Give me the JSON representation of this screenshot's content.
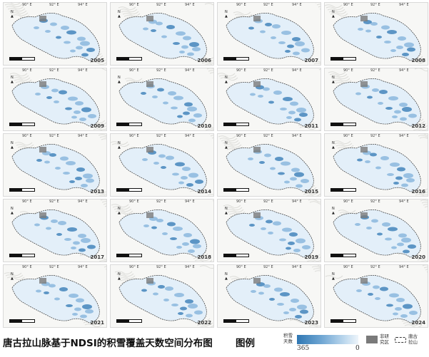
{
  "figure": {
    "title": "唐古拉山脉基于NDSI的积雪覆盖天数空间分布图",
    "lon_ticks": [
      "90° E",
      "92° E",
      "94° E"
    ],
    "lat_ticks": [
      "33° N",
      "32° N"
    ],
    "north_label": "N",
    "scale_labels": [
      "0",
      "50",
      "100"
    ],
    "panels": [
      {
        "year": "2005"
      },
      {
        "year": "2006"
      },
      {
        "year": "2007"
      },
      {
        "year": "2008"
      },
      {
        "year": "2009"
      },
      {
        "year": "2010"
      },
      {
        "year": "2011"
      },
      {
        "year": "2012"
      },
      {
        "year": "2013"
      },
      {
        "year": "2014"
      },
      {
        "year": "2015"
      },
      {
        "year": "2016"
      },
      {
        "year": "2017"
      },
      {
        "year": "2018"
      },
      {
        "year": "2019"
      },
      {
        "year": "2020"
      },
      {
        "year": "2021"
      },
      {
        "year": "2022"
      },
      {
        "year": "2023"
      },
      {
        "year": "2024"
      }
    ]
  },
  "legend": {
    "title": "图例",
    "snow_days_label": "积雪天数",
    "max": "365",
    "min": "0",
    "nodata_label": "非研究区",
    "boundary_label": "唐古拉山"
  },
  "colors": {
    "ramp_dark": "#2f77b3",
    "ramp_light": "#eef5fb",
    "nodata": "#7a7a7a"
  }
}
